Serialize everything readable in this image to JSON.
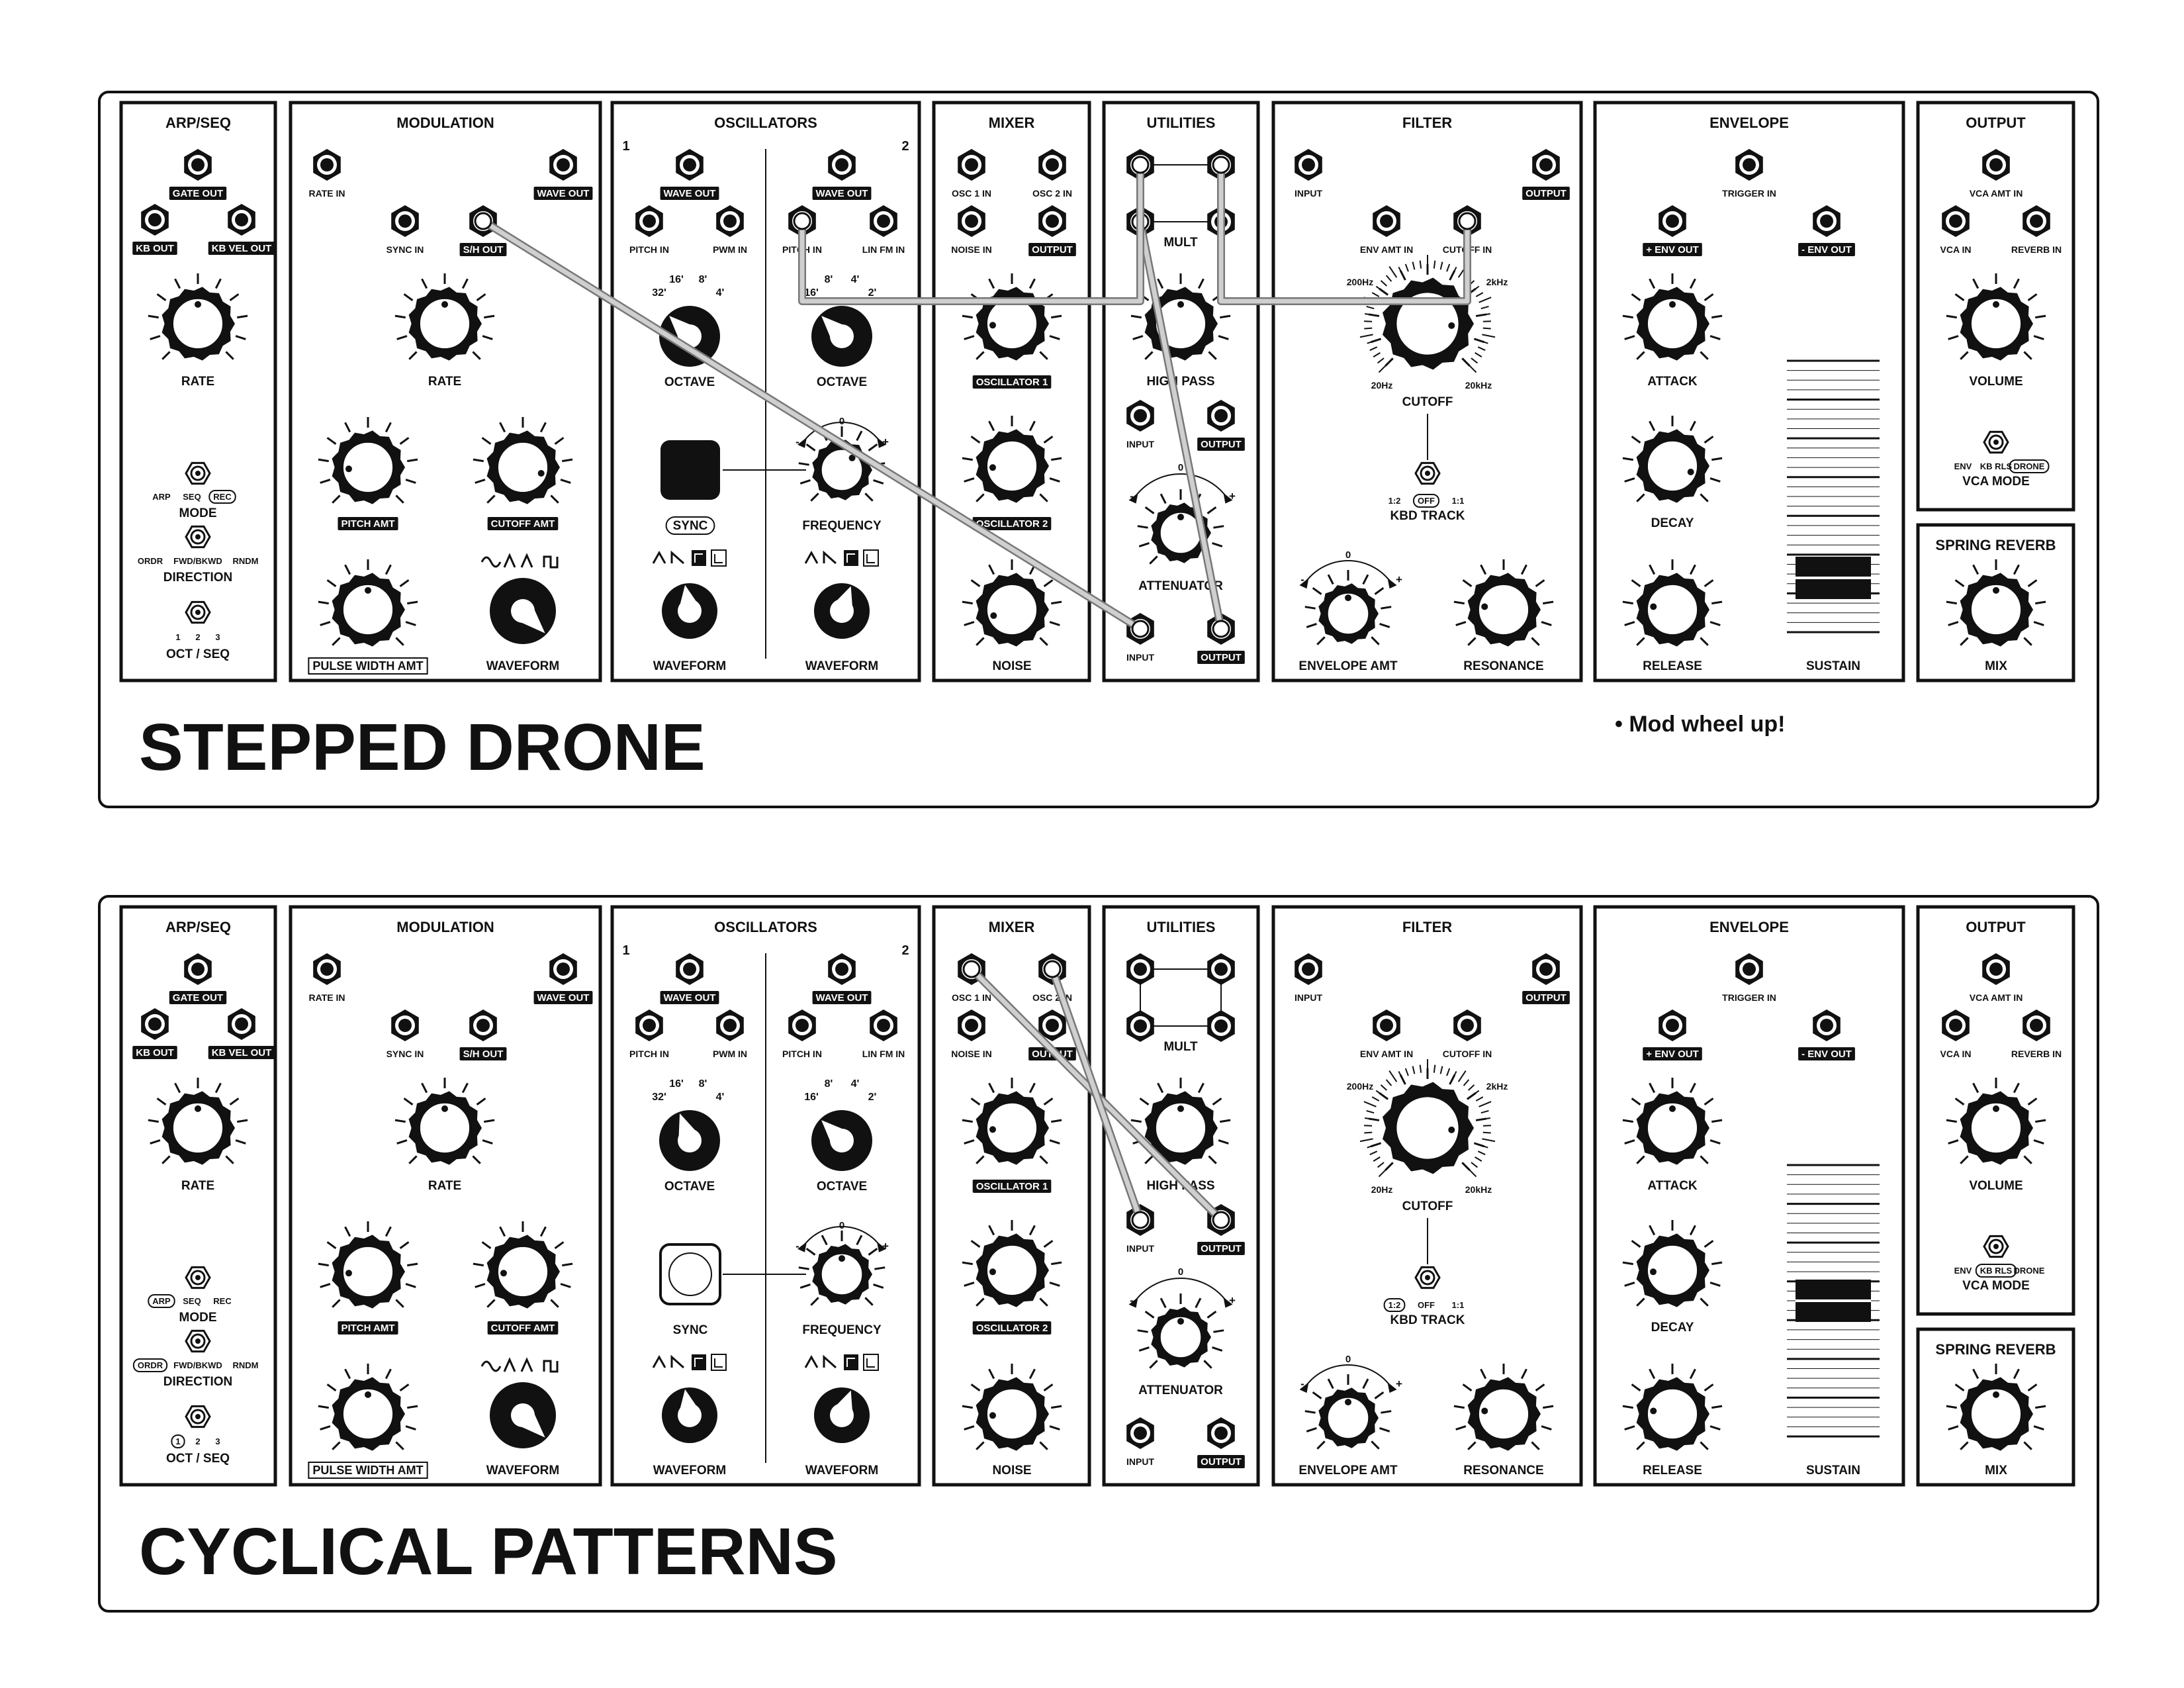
{
  "panels": [
    {
      "id": "stepped-drone",
      "title": "STEPPED DRONE",
      "note": "• Mod wheel up!",
      "settings": {
        "arp_rate": 0.5,
        "mod_rate": 0.5,
        "pitch_amt": 0.15,
        "cutoff_amt": 0.9,
        "pwm_amt": 0.5,
        "waveform_mod": "S/H",
        "osc1_octave": "32'",
        "osc1_waveform": "saw",
        "osc2_octave": "16'",
        "osc2_waveform": "square",
        "frequency": 0.65,
        "osc1_level": 0.15,
        "osc2_level": 0.15,
        "noise_level": 0.1,
        "high_pass": 0.5,
        "attenuator": 0.5,
        "cutoff": 0.85,
        "envelope_amt": 0.5,
        "resonance": 0.2,
        "attack": 0.5,
        "decay": 0.9,
        "release": 0.2,
        "volume": 0.5,
        "reverb_mix": 0.5,
        "sustain_level": 0.2
      },
      "mode_selected": "REC",
      "direction_selected": "",
      "octseq_selected": "",
      "kbd_selected": "OFF",
      "vca_selected": "DRONE",
      "sync_on": true,
      "cables": [
        [
          "mod-sh-out",
          "util-in2"
        ],
        [
          "util-mult-a2",
          "util-out2"
        ],
        [
          "util-mult-a1",
          "osc2-pitch-in"
        ],
        [
          "util-mult-b1",
          "filter-cutoff-in"
        ]
      ]
    },
    {
      "id": "cyclical-patterns",
      "title": "CYCLICAL PATTERNS",
      "note": "",
      "settings": {
        "arp_rate": 0.5,
        "mod_rate": 0.5,
        "pitch_amt": 0.15,
        "cutoff_amt": 0.15,
        "pwm_amt": 0.5,
        "waveform_mod": "S/H",
        "osc1_octave": "16'",
        "osc1_waveform": "saw",
        "osc2_octave": "16'",
        "osc2_waveform": "square",
        "frequency": 0.5,
        "osc1_level": 0.15,
        "osc2_level": 0.15,
        "noise_level": 0.15,
        "high_pass": 0.5,
        "attenuator": 0.5,
        "cutoff": 0.85,
        "envelope_amt": 0.5,
        "resonance": 0.2,
        "attack": 0.5,
        "decay": 0.15,
        "release": 0.2,
        "volume": 0.5,
        "reverb_mix": 0.5,
        "sustain_level": 0.5
      },
      "mode_selected": "ARP",
      "direction_selected": "ORDR",
      "octseq_selected": "1",
      "kbd_selected": "1:2",
      "vca_selected": "KB RLS",
      "sync_on": false,
      "cables": [
        [
          "mix-osc1-in",
          "util-out1"
        ],
        [
          "mix-osc2-in",
          "util-in1"
        ]
      ]
    }
  ],
  "modules": {
    "arp": {
      "title": "ARP/SEQ",
      "gate_out": "GATE OUT",
      "kb_out": "KB OUT",
      "kb_vel_out": "KB VEL OUT",
      "rate": "RATE",
      "mode_opts": [
        "ARP",
        "SEQ",
        "REC"
      ],
      "mode": "MODE",
      "dir_opts": [
        "ORDR",
        "FWD/BKWD",
        "RNDM"
      ],
      "direction": "DIRECTION",
      "octseq_opts": [
        "1",
        "2",
        "3"
      ],
      "octseq": "OCT / SEQ"
    },
    "mod": {
      "title": "MODULATION",
      "rate_in": "RATE IN",
      "wave_out": "WAVE OUT",
      "sync_in": "SYNC IN",
      "sh_out": "S/H OUT",
      "rate": "RATE",
      "pitch_amt": "PITCH AMT",
      "cutoff_amt": "CUTOFF AMT",
      "pwm_amt": "PULSE WIDTH AMT",
      "waveform": "WAVEFORM"
    },
    "osc": {
      "title": "OSCILLATORS",
      "num1": "1",
      "num2": "2",
      "wave_out": "WAVE OUT",
      "pitch_in": "PITCH IN",
      "pwm_in": "PWM IN",
      "lin_fm_in": "LIN FM IN",
      "oct_labels": [
        "32'",
        "16'",
        "8'",
        "4'"
      ],
      "oct_labels2": [
        "16'",
        "8'",
        "4'",
        "2'"
      ],
      "octave": "OCTAVE",
      "sync": "SYNC",
      "frequency": "FREQUENCY",
      "zero": "0",
      "minus": "-",
      "plus": "+",
      "waveform": "WAVEFORM"
    },
    "mixer": {
      "title": "MIXER",
      "osc1_in": "OSC 1 IN",
      "osc2_in": "OSC 2 IN",
      "noise_in": "NOISE IN",
      "output": "OUTPUT",
      "osc1": "OSCILLATOR 1",
      "osc2": "OSCILLATOR 2",
      "noise": "NOISE"
    },
    "util": {
      "title": "UTILITIES",
      "mult": "MULT",
      "high_pass": "HIGH PASS",
      "input": "INPUT",
      "output": "OUTPUT",
      "attenuator": "ATTENUATOR",
      "zero": "0",
      "minus": "-",
      "plus": "+"
    },
    "filter": {
      "title": "FILTER",
      "input": "INPUT",
      "output": "OUTPUT",
      "env_amt_in": "ENV AMT IN",
      "cutoff_in": "CUTOFF IN",
      "hz200": "200Hz",
      "khz2": "2kHz",
      "hz20": "20Hz",
      "khz20": "20kHz",
      "cutoff": "CUTOFF",
      "kbd_opts": [
        "1:2",
        "OFF",
        "1:1"
      ],
      "kbd_track": "KBD TRACK",
      "envelope_amt": "ENVELOPE AMT",
      "resonance": "RESONANCE",
      "zero": "0",
      "minus": "-",
      "plus": "+"
    },
    "env": {
      "title": "ENVELOPE",
      "trigger_in": "TRIGGER IN",
      "pos_env_out": "+ ENV OUT",
      "neg_env_out": "- ENV OUT",
      "attack": "ATTACK",
      "decay": "DECAY",
      "release": "RELEASE",
      "sustain": "SUSTAIN"
    },
    "out": {
      "title": "OUTPUT",
      "vca_amt_in": "VCA AMT IN",
      "vca_in": "VCA IN",
      "reverb_in": "REVERB IN",
      "volume": "VOLUME",
      "vca_opts": [
        "ENV",
        "KB RLS",
        "DRONE"
      ],
      "vca_mode": "VCA MODE"
    },
    "reverb": {
      "title": "SPRING REVERB",
      "mix": "MIX"
    }
  },
  "colors": {
    "ink": "#111111",
    "paper": "#ffffff",
    "cable": "#cfcfcf",
    "cable_edge": "#777777"
  }
}
